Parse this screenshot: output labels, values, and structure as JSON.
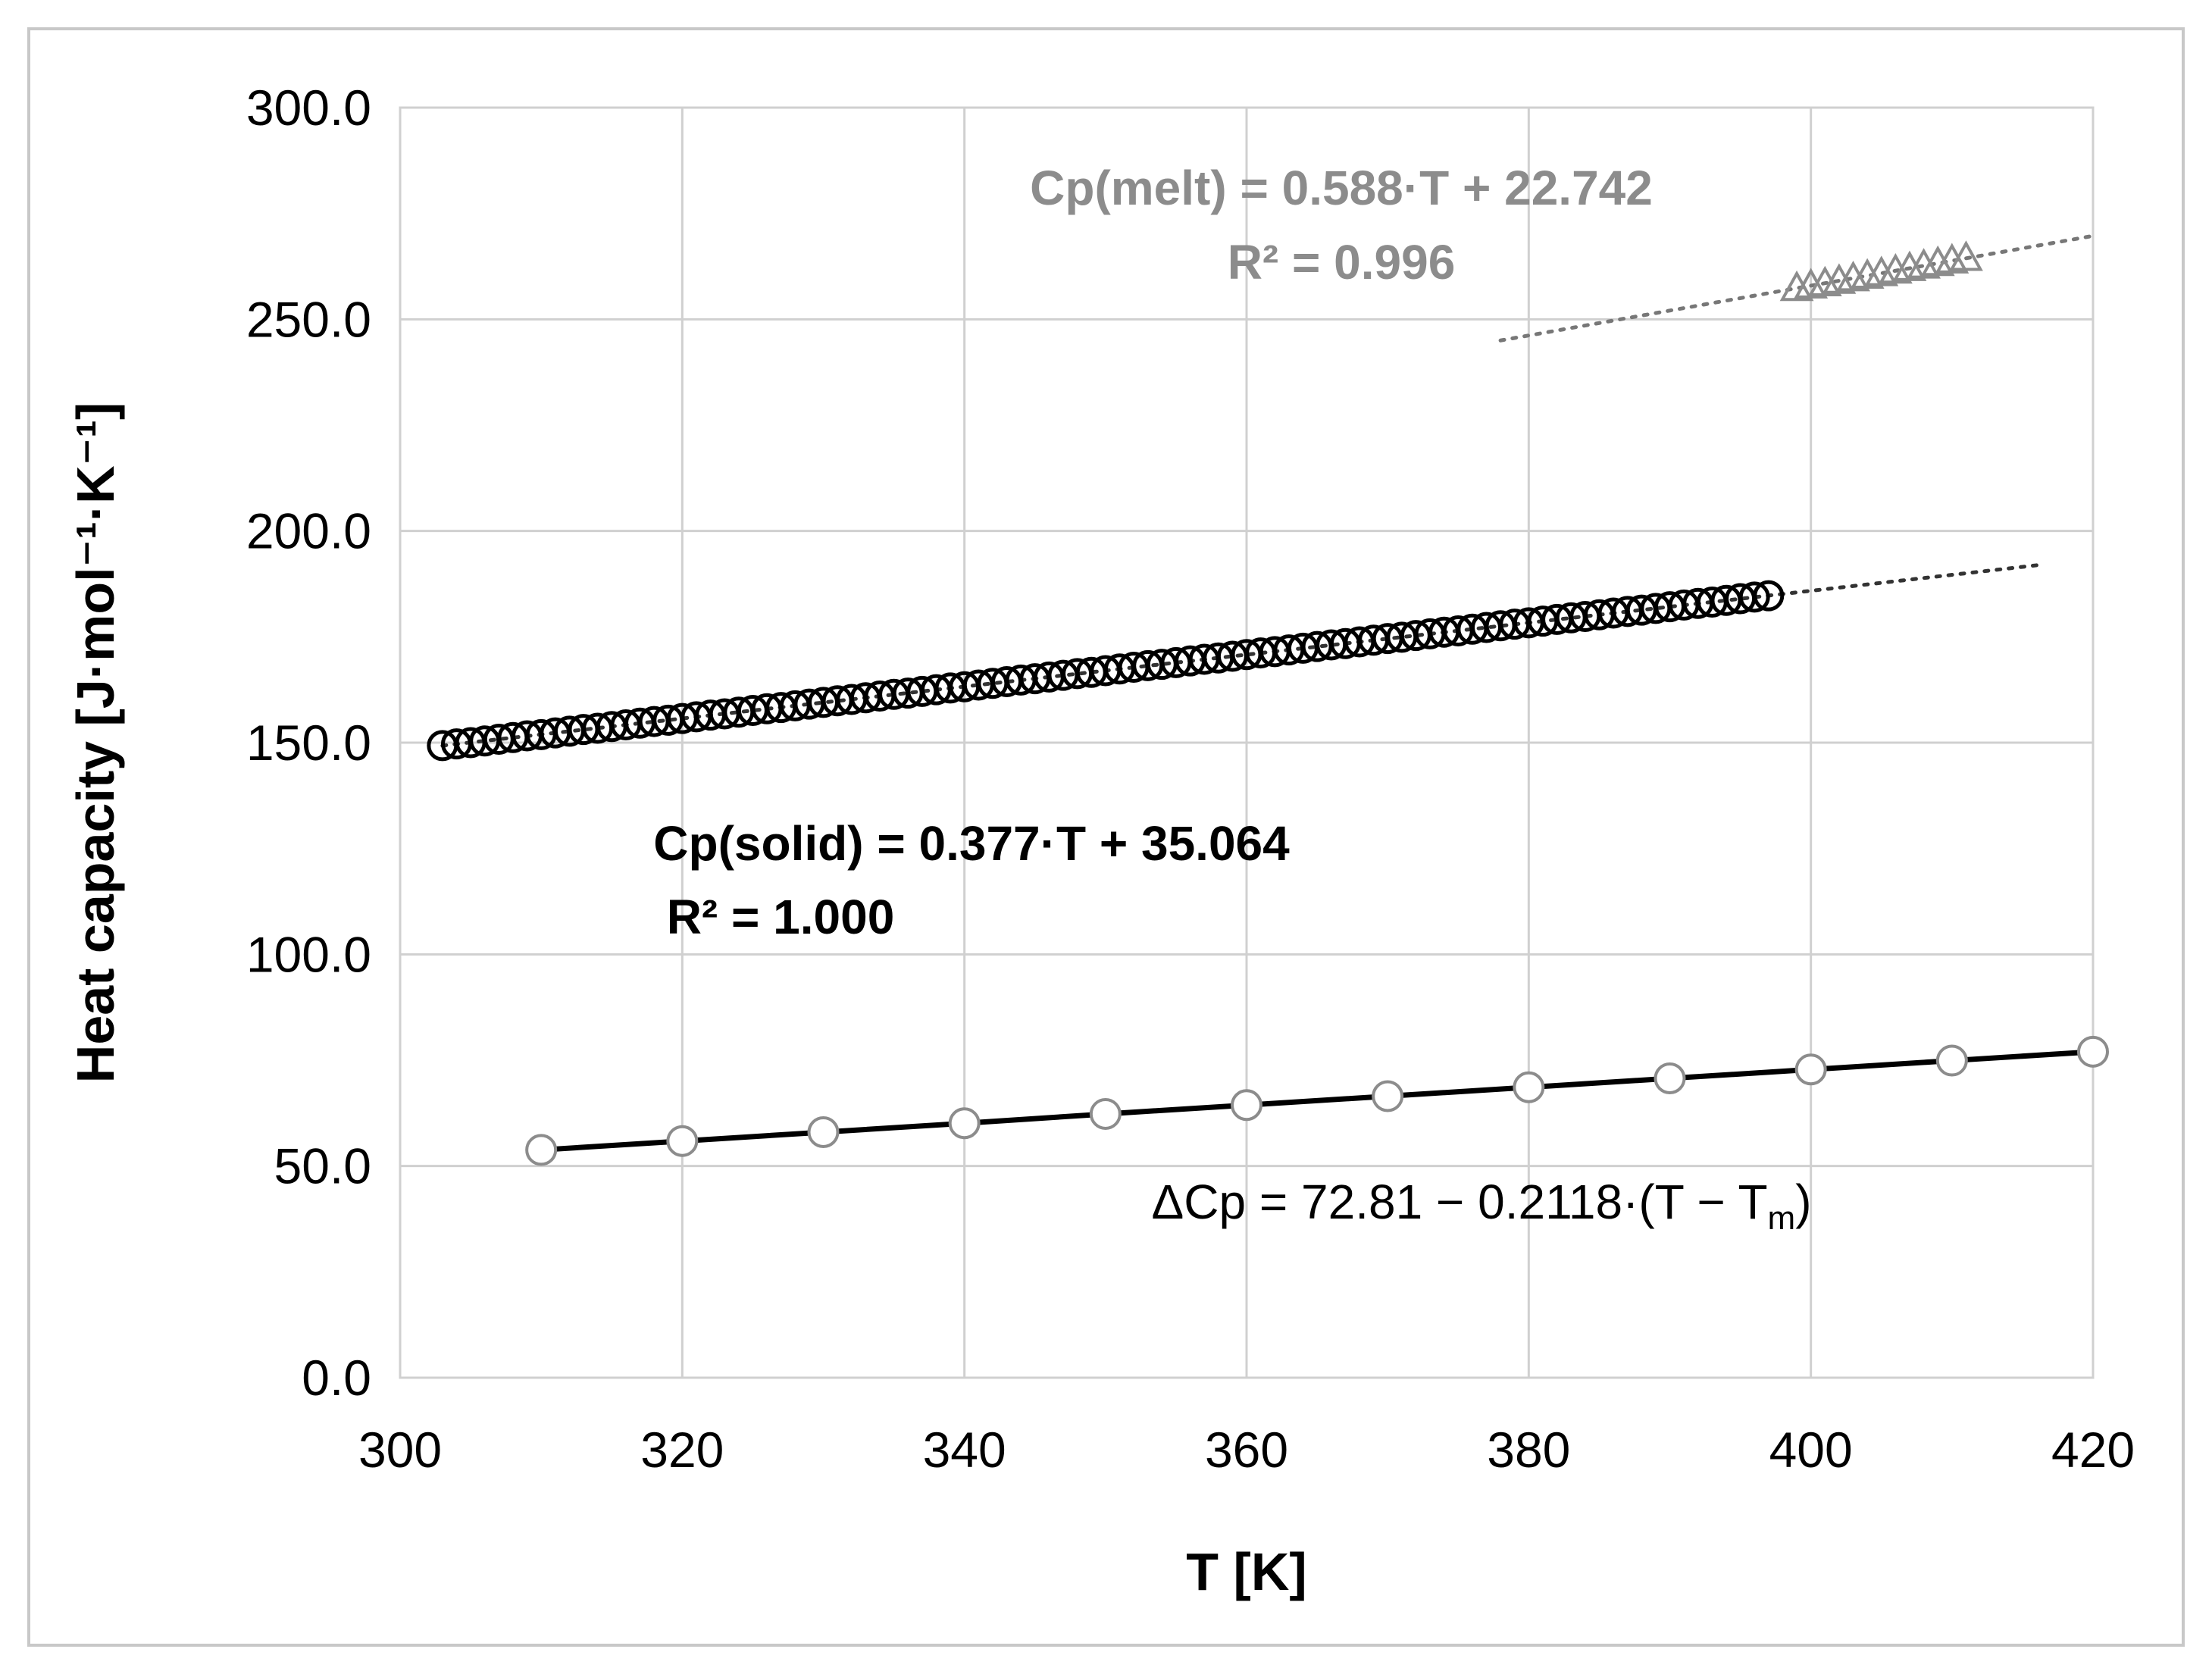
{
  "chart_data": {
    "type": "scatter",
    "xlabel": "T [K]",
    "ylabel": "Heat capacity  [J·mol⁻¹·K⁻¹]",
    "xlim": [
      300,
      420
    ],
    "ylim": [
      0,
      300
    ],
    "x_ticks": [
      "300",
      "320",
      "340",
      "360",
      "380",
      "400",
      "420"
    ],
    "y_ticks": [
      "0.0",
      "50.0",
      "100.0",
      "150.0",
      "200.0",
      "250.0",
      "300.0"
    ],
    "grid": true,
    "colors": {
      "solid": "#000000",
      "melt": "#8c8c8c",
      "delta": "#000000",
      "grid": "#d0d0d0"
    },
    "series": [
      {
        "marker": "open-circle",
        "x": [
          303,
          304,
          305,
          306,
          307,
          308,
          309,
          310,
          311,
          312,
          313,
          314,
          315,
          316,
          317,
          318,
          319,
          320,
          321,
          322,
          323,
          324,
          325,
          326,
          327,
          328,
          329,
          330,
          331,
          332,
          333,
          334,
          335,
          336,
          337,
          338,
          339,
          340,
          341,
          342,
          343,
          344,
          345,
          346,
          347,
          348,
          349,
          350,
          351,
          352,
          353,
          354,
          355,
          356,
          357,
          358,
          359,
          360,
          361,
          362,
          363,
          364,
          365,
          366,
          367,
          368,
          369,
          370,
          371,
          372,
          373,
          374,
          375,
          376,
          377,
          378,
          379,
          380,
          381,
          382,
          383,
          384,
          385,
          386,
          387,
          388,
          389,
          390,
          391,
          392,
          393,
          394,
          395,
          396,
          397
        ],
        "y": [
          149.3,
          149.7,
          150.0,
          150.4,
          150.8,
          151.2,
          151.6,
          151.9,
          152.3,
          152.7,
          153.1,
          153.4,
          153.8,
          154.2,
          154.6,
          155.0,
          155.3,
          155.7,
          156.1,
          156.5,
          156.8,
          157.2,
          157.6,
          158.0,
          158.3,
          158.7,
          159.1,
          159.5,
          159.9,
          160.2,
          160.6,
          161.0,
          161.4,
          161.7,
          162.1,
          162.5,
          162.9,
          163.2,
          163.6,
          164.0,
          164.4,
          164.8,
          165.1,
          165.5,
          165.9,
          166.3,
          166.6,
          167.0,
          167.4,
          167.8,
          168.2,
          168.5,
          168.9,
          169.3,
          169.7,
          170.0,
          170.4,
          170.8,
          171.2,
          171.5,
          171.9,
          172.3,
          172.7,
          173.1,
          173.4,
          173.8,
          174.2,
          174.6,
          174.9,
          175.3,
          175.7,
          176.1,
          176.4,
          176.8,
          177.2,
          177.6,
          178.0,
          178.3,
          178.7,
          179.1,
          179.5,
          179.8,
          180.2,
          180.6,
          181.0,
          181.3,
          181.7,
          182.1,
          182.5,
          182.9,
          183.2,
          183.6,
          184.0,
          184.4,
          184.7
        ],
        "trendline": {
          "x": [
            303,
            416
          ],
          "y": [
            149.3,
            191.9
          ]
        },
        "equation": "Cp(solid) = 0.377·T + 35.064",
        "r2": "R² = 1.000"
      },
      {
        "marker": "open-triangle",
        "x": [
          399,
          400,
          401,
          402,
          403,
          404,
          405,
          406,
          407,
          408,
          409,
          410,
          411
        ],
        "y": [
          257.4,
          258.0,
          258.5,
          259.1,
          259.7,
          260.3,
          260.9,
          261.5,
          262.1,
          262.7,
          263.3,
          263.9,
          264.5
        ],
        "trendline": {
          "x": [
            378,
            420
          ],
          "y": [
            245.0,
            269.7
          ]
        },
        "equation": "Cp(melt) = 0.588·T + 22.742",
        "r2": "R² = 0.996"
      },
      {
        "marker": "open-circle-line",
        "x": [
          310,
          320,
          330,
          340,
          350,
          360,
          370,
          380,
          390,
          400,
          410,
          420
        ],
        "y": [
          53.8,
          55.9,
          58.0,
          60.1,
          62.3,
          64.4,
          66.5,
          68.6,
          70.7,
          72.8,
          74.9,
          77.0
        ],
        "equation_parts": {
          "main": "ΔCp = 72.81 − 0.2118·(T − T",
          "sub": "m",
          "end": ")"
        }
      }
    ]
  }
}
